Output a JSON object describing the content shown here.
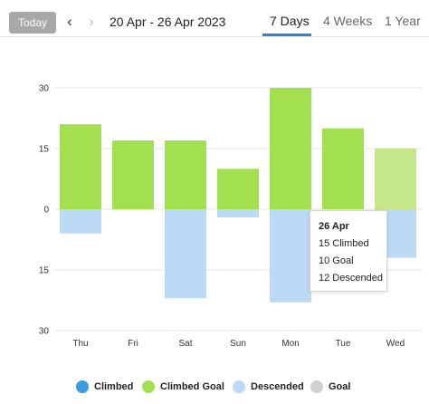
{
  "toolbar": {
    "today_label": "Today",
    "prev_icon": "chevron-left-icon",
    "next_icon": "chevron-right-icon",
    "date_range": "20 Apr - 26 Apr 2023"
  },
  "tabs": [
    {
      "label": "7 Days",
      "active": true
    },
    {
      "label": "4 Weeks",
      "active": false
    },
    {
      "label": "1 Year",
      "active": false
    }
  ],
  "colors": {
    "climbed": "#3d9be0",
    "climbed_goal": "#a3e04f",
    "climbed_goal_light": "#c6e88a",
    "descended": "#bcd9f5",
    "goal": "#d0d0d0",
    "accent": "#3b82c4"
  },
  "chart_data": {
    "type": "bar",
    "categories": [
      "Thu",
      "Fri",
      "Sat",
      "Sun",
      "Mon",
      "Tue",
      "Wed"
    ],
    "series": [
      {
        "name": "Climbed Goal",
        "values": [
          21,
          17,
          17,
          10,
          30,
          20,
          15
        ]
      },
      {
        "name": "Descended",
        "values": [
          6,
          0,
          22,
          2,
          23,
          0,
          12
        ]
      }
    ],
    "highlighted_category": "Wed",
    "y_tick_labels": [
      "30",
      "15",
      "0",
      "15",
      "30"
    ],
    "ylim": [
      -30,
      30
    ],
    "grid": true,
    "legend_position": "bottom"
  },
  "tooltip": {
    "title": "26 Apr",
    "lines": [
      "15 Climbed",
      "10 Goal",
      "12 Descended"
    ]
  },
  "legend": [
    {
      "label": "Climbed",
      "color": "#3d9be0"
    },
    {
      "label": "Climbed Goal",
      "color": "#a3e04f"
    },
    {
      "label": "Descended",
      "color": "#bcd9f5"
    },
    {
      "label": "Goal",
      "color": "#d0d0d0"
    }
  ]
}
